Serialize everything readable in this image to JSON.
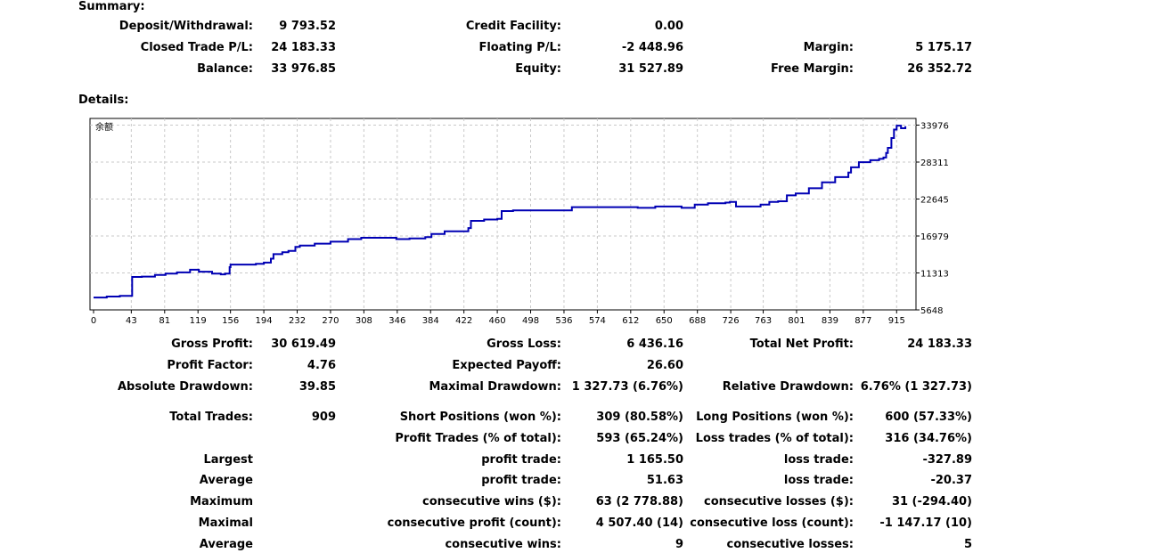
{
  "summary": {
    "title": "Summary:",
    "deposit_label": "Deposit/Withdrawal:",
    "deposit_value": "9 793.52",
    "credit_label": "Credit Facility:",
    "credit_value": "0.00",
    "closed_label": "Closed Trade P/L:",
    "closed_value": "24 183.33",
    "floating_label": "Floating P/L:",
    "floating_value": "-2 448.96",
    "margin_label": "Margin:",
    "margin_value": "5 175.17",
    "balance_label": "Balance:",
    "balance_value": "33 976.85",
    "equity_label": "Equity:",
    "equity_value": "31 527.89",
    "free_margin_label": "Free Margin:",
    "free_margin_value": "26 352.72"
  },
  "details": {
    "title": "Details:",
    "gross_profit_label": "Gross Profit:",
    "gross_profit_value": "30 619.49",
    "gross_loss_label": "Gross Loss:",
    "gross_loss_value": "6 436.16",
    "total_net_label": "Total Net Profit:",
    "total_net_value": "24 183.33",
    "profit_factor_label": "Profit Factor:",
    "profit_factor_value": "4.76",
    "expected_payoff_label": "Expected Payoff:",
    "expected_payoff_value": "26.60",
    "abs_dd_label": "Absolute Drawdown:",
    "abs_dd_value": "39.85",
    "max_dd_label": "Maximal Drawdown:",
    "max_dd_value": "1 327.73 (6.76%)",
    "rel_dd_label": "Relative Drawdown:",
    "rel_dd_value": "6.76% (1 327.73)",
    "total_trades_label": "Total Trades:",
    "total_trades_value": "909",
    "short_label": "Short Positions (won %):",
    "short_value": "309 (80.58%)",
    "long_label": "Long Positions (won %):",
    "long_value": "600 (57.33%)",
    "profit_trades_label": "Profit Trades (% of total):",
    "profit_trades_value": "593 (65.24%)",
    "loss_trades_label": "Loss trades (% of total):",
    "loss_trades_value": "316 (34.76%)",
    "largest_label": "Largest",
    "largest_profit_label": "profit trade:",
    "largest_profit_value": "1 165.50",
    "largest_loss_label": "loss trade:",
    "largest_loss_value": "-327.89",
    "average_label": "Average",
    "avg_profit_label": "profit trade:",
    "avg_profit_value": "51.63",
    "avg_loss_label": "loss trade:",
    "avg_loss_value": "-20.37",
    "maximum_label": "Maximum",
    "max_wins_label": "consecutive wins ($):",
    "max_wins_value": "63 (2 778.88)",
    "max_losses_label": "consecutive losses ($):",
    "max_losses_value": "31 (-294.40)",
    "maximal_label": "Maximal",
    "maximal_profit_label": "consecutive profit (count):",
    "maximal_profit_value": "4 507.40 (14)",
    "maximal_loss_label": "consecutive loss (count):",
    "maximal_loss_value": "-1 147.17 (10)",
    "average2_label": "Average",
    "avg_wins_label": "consecutive wins:",
    "avg_wins_value": "9",
    "avg_losses_label": "consecutive losses:",
    "avg_losses_value": "5"
  },
  "chart_data": {
    "type": "line",
    "title": "余额",
    "line_color": "#0000b4",
    "grid": true,
    "xlim": [
      0,
      933
    ],
    "ylim": [
      5648,
      35000
    ],
    "x_ticks": [
      0,
      43,
      81,
      119,
      156,
      194,
      232,
      270,
      308,
      346,
      384,
      422,
      460,
      498,
      536,
      574,
      612,
      650,
      688,
      726,
      763,
      801,
      839,
      877,
      915
    ],
    "y_ticks": [
      5648,
      11313,
      16979,
      22645,
      28311,
      33976
    ],
    "series": [
      {
        "x": [
          0,
          15,
          30,
          43,
          44,
          55,
          70,
          82,
          95,
          110,
          120,
          135,
          145,
          150,
          155,
          156,
          170,
          185,
          194,
          202,
          205,
          215,
          222,
          230,
          235,
          252,
          270,
          290,
          305,
          330,
          345,
          360,
          378,
          385,
          400,
          415,
          427,
          430,
          445,
          460,
          465,
          478,
          500,
          520,
          540,
          545,
          570,
          600,
          620,
          640,
          660,
          670,
          685,
          700,
          720,
          725,
          732,
          745,
          760,
          770,
          780,
          790,
          800,
          815,
          830,
          845,
          860,
          863,
          872,
          885,
          895,
          900,
          903,
          905,
          909,
          912,
          915,
          920,
          925
        ],
        "y": [
          7550,
          7700,
          7800,
          7800,
          10700,
          10750,
          11000,
          11200,
          11400,
          11800,
          11500,
          11200,
          11100,
          11200,
          12200,
          12600,
          12600,
          12700,
          12900,
          13500,
          14200,
          14500,
          14700,
          15300,
          15500,
          15800,
          16100,
          16500,
          16700,
          16700,
          16500,
          16600,
          16800,
          17300,
          17700,
          17700,
          18200,
          19300,
          19500,
          19600,
          20800,
          20900,
          20900,
          20900,
          20900,
          21400,
          21400,
          21400,
          21300,
          21500,
          21500,
          21300,
          21800,
          22000,
          22100,
          22200,
          21500,
          21500,
          21800,
          22200,
          22300,
          23200,
          23500,
          24300,
          25200,
          26000,
          26700,
          27500,
          28300,
          28600,
          28800,
          29000,
          29700,
          30500,
          32000,
          33300,
          33900,
          33500,
          33800
        ]
      }
    ]
  }
}
